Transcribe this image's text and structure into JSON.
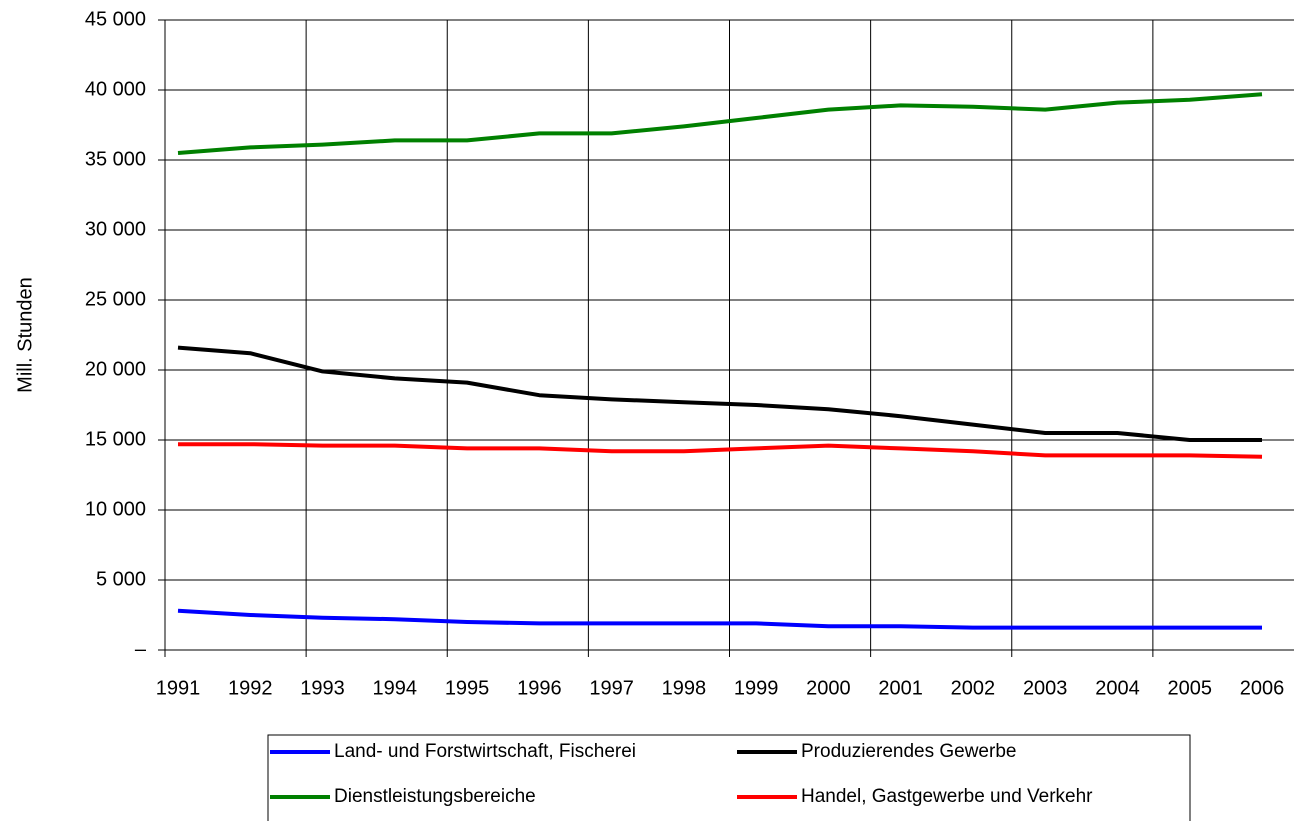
{
  "chart_data": {
    "type": "line",
    "y_axis_label": "Mill. Stunden",
    "categories": [
      "1991",
      "1992",
      "1993",
      "1994",
      "1995",
      "1996",
      "1997",
      "1998",
      "1999",
      "2000",
      "2001",
      "2002",
      "2003",
      "2004",
      "2005",
      "2006"
    ],
    "series": [
      {
        "name": "Land- und Forstwirtschaft, Fischerei",
        "color": "#0000ff",
        "values": [
          2800,
          2500,
          2300,
          2200,
          2000,
          1900,
          1900,
          1900,
          1900,
          1700,
          1700,
          1600,
          1600,
          1600,
          1600,
          1600
        ]
      },
      {
        "name": "Produzierendes Gewerbe",
        "color": "#000000",
        "values": [
          21600,
          21200,
          19900,
          19400,
          19100,
          18200,
          17900,
          17700,
          17500,
          17200,
          16700,
          16100,
          15500,
          15500,
          15000,
          15000
        ]
      },
      {
        "name": "Dienstleistungsbereiche",
        "color": "#008000",
        "values": [
          35500,
          35900,
          36100,
          36400,
          36400,
          36900,
          36900,
          37400,
          38000,
          38600,
          38900,
          38800,
          38600,
          39100,
          39300,
          39700
        ]
      },
      {
        "name": "Handel, Gastgewerbe und Verkehr",
        "color": "#ff0000",
        "values": [
          14700,
          14700,
          14600,
          14600,
          14400,
          14400,
          14200,
          14200,
          14400,
          14600,
          14400,
          14200,
          13900,
          13900,
          13900,
          13800
        ]
      }
    ],
    "ylim": [
      0,
      45000
    ],
    "yticks": [
      {
        "value": 0,
        "label": "–"
      },
      {
        "value": 5000,
        "label": "5 000"
      },
      {
        "value": 10000,
        "label": "10 000"
      },
      {
        "value": 15000,
        "label": "15 000"
      },
      {
        "value": 20000,
        "label": "20 000"
      },
      {
        "value": 25000,
        "label": "25 000"
      },
      {
        "value": 30000,
        "label": "30 000"
      },
      {
        "value": 35000,
        "label": "35 000"
      },
      {
        "value": 40000,
        "label": "40 000"
      },
      {
        "value": 45000,
        "label": "45 000"
      }
    ],
    "grid": true
  }
}
